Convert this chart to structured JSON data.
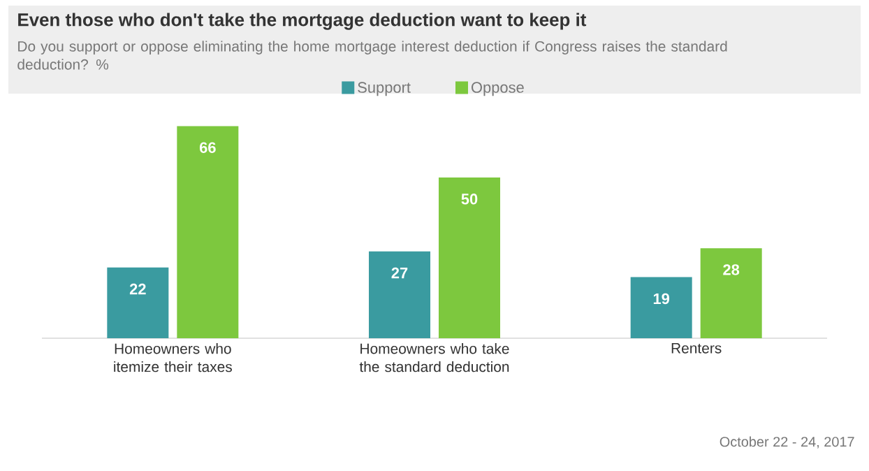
{
  "chart_data": {
    "type": "bar",
    "title": "Even those who don't take the mortgage deduction want to keep it",
    "subtitle": "Do you support  or oppose eliminating the home mortgage interest deduction if Congress raises the standard deduction? %",
    "categories": [
      "Homeowners who itemize their taxes",
      "Homeowners who take the standard deduction",
      "Renters"
    ],
    "series": [
      {
        "name": "Support",
        "color": "#3a9ba0",
        "values": [
          22,
          27,
          19
        ]
      },
      {
        "name": "Oppose",
        "color": "#7dc83e",
        "values": [
          66,
          50,
          28
        ]
      }
    ],
    "data_labels": true,
    "legend": "top",
    "annotations": [
      "October 22 - 24, 2017"
    ]
  }
}
